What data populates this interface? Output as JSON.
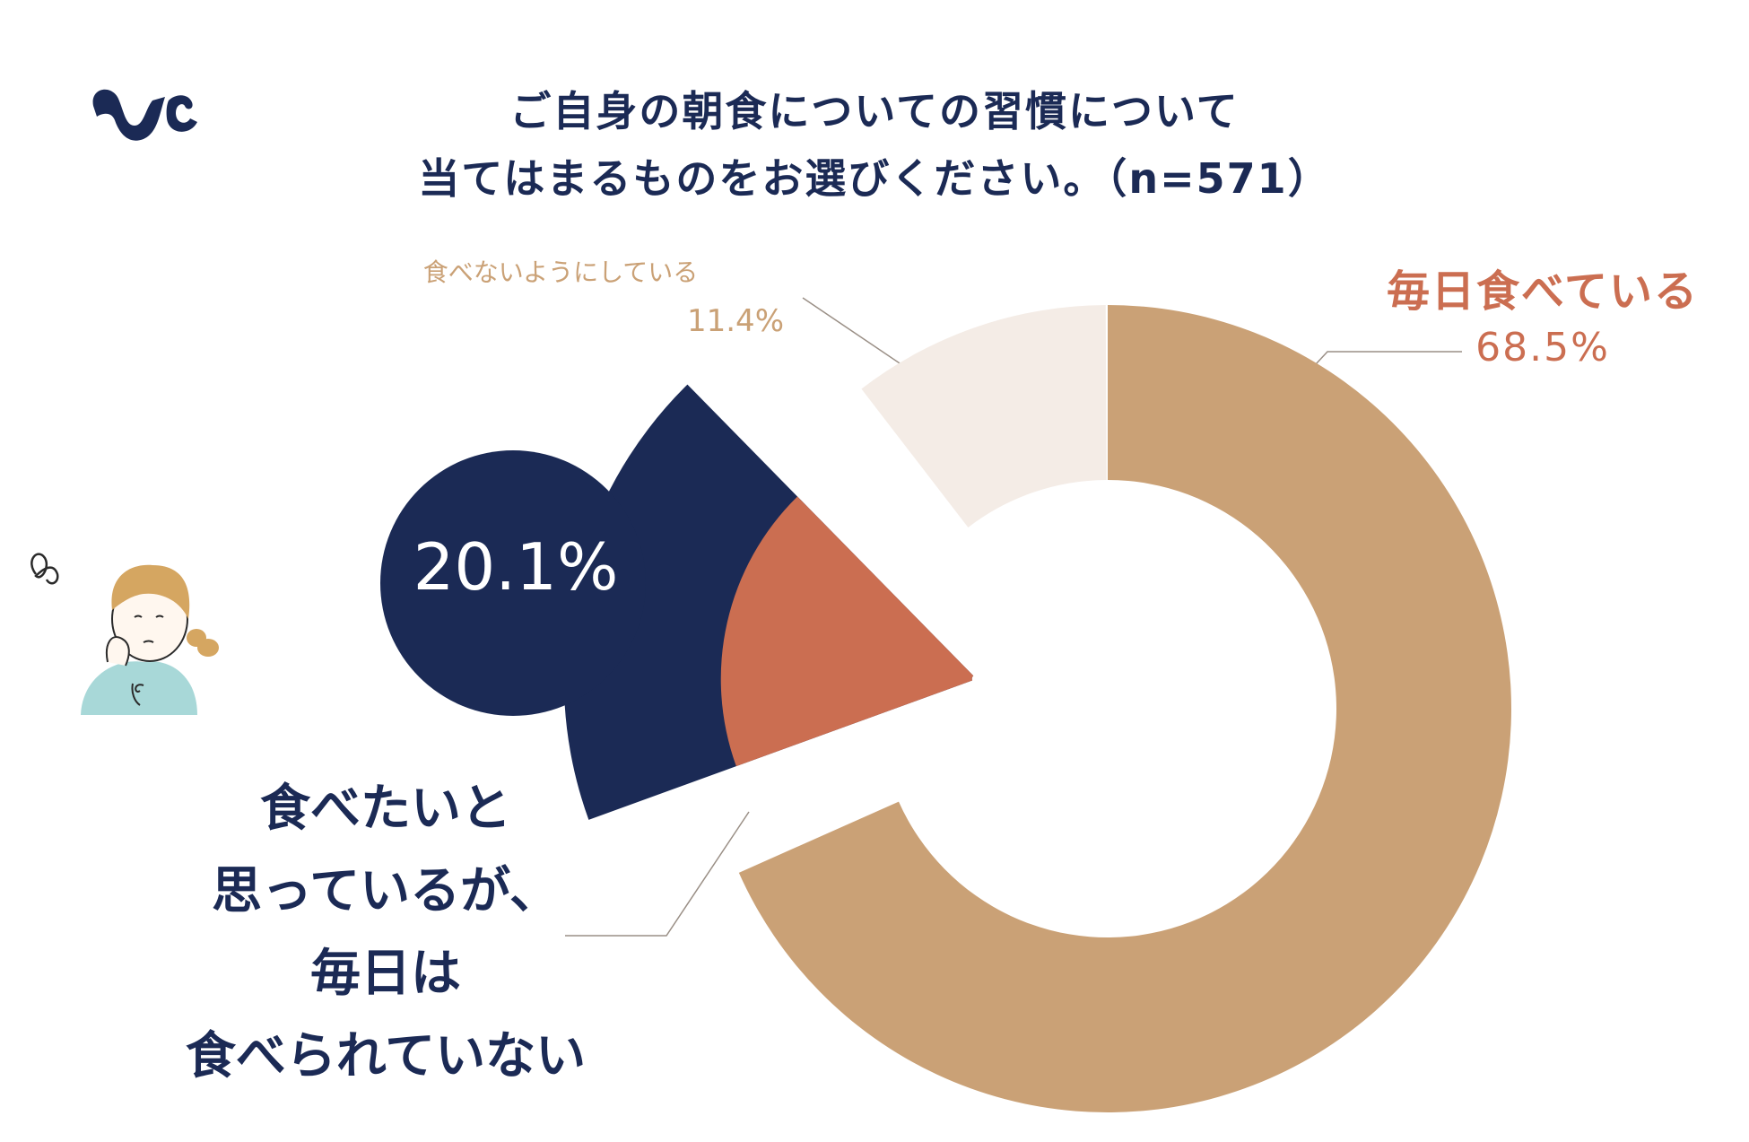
{
  "title": {
    "line1": "ご自身の朝食についての習慣について",
    "line2": "当てはまるものをお選びください。（n=571）"
  },
  "colors": {
    "everyday": "#caa176",
    "want_but_not": "#1b2a55",
    "want_but_not_inner": "#cb6e51",
    "avoid": "#f4ece6",
    "navy": "#1b2a55",
    "hair": "#d5a661",
    "shirt": "#a8d8d8"
  },
  "chart_data": {
    "type": "pie",
    "title": "ご自身の朝食についての習慣について当てはまるものをお選びください。（n=571）",
    "slices": [
      {
        "label": "毎日食べている",
        "value": 68.5,
        "value_label": "68.5%"
      },
      {
        "label": "食べたいと思っているが、毎日は食べられていない",
        "value": 20.1,
        "value_label": "20.1%"
      },
      {
        "label": "食べないようにしている",
        "value": 11.4,
        "value_label": "11.4%"
      }
    ]
  },
  "labels": {
    "everyday": {
      "name": "毎日食べている",
      "value": "68.5%"
    },
    "avoid": {
      "name": "食べないようにしている",
      "value": "11.4%"
    },
    "want": {
      "lines": [
        "食べたいと",
        "思っているが、",
        "毎日は",
        "食べられていない"
      ],
      "value": "20.1%"
    }
  },
  "icons": {
    "logo": "brand-logo-icon",
    "person": "thinking-woman-illustration"
  }
}
